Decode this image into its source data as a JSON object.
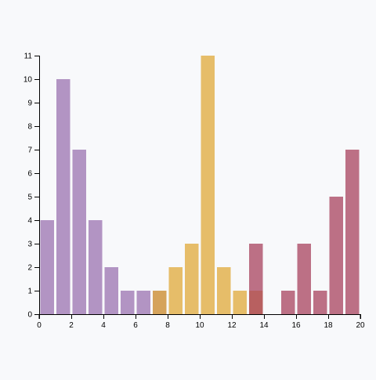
{
  "chart_data": {
    "type": "bar",
    "title": "",
    "xlabel": "",
    "ylabel": "",
    "xlim": [
      0,
      20
    ],
    "ylim": [
      0,
      11
    ],
    "grid": false,
    "legend": "none",
    "x_ticks": [
      0,
      2,
      4,
      6,
      8,
      10,
      12,
      14,
      16,
      18,
      20
    ],
    "y_ticks": [
      0,
      1,
      2,
      3,
      4,
      5,
      6,
      7,
      8,
      9,
      10,
      11
    ],
    "bin_width": 1,
    "series": [
      {
        "color": "#9b72b0",
        "bins": [
          {
            "x0": 0,
            "x1": 1,
            "value": 4
          },
          {
            "x0": 1,
            "x1": 2,
            "value": 10
          },
          {
            "x0": 2,
            "x1": 3,
            "value": 7
          },
          {
            "x0": 3,
            "x1": 4,
            "value": 4
          },
          {
            "x0": 4,
            "x1": 5,
            "value": 2
          },
          {
            "x0": 5,
            "x1": 6,
            "value": 1
          },
          {
            "x0": 6,
            "x1": 7,
            "value": 1
          },
          {
            "x0": 7,
            "x1": 8,
            "value": 1
          }
        ]
      },
      {
        "color": "#e0a838",
        "bins": [
          {
            "x0": 7,
            "x1": 8,
            "value": 1
          },
          {
            "x0": 8,
            "x1": 9,
            "value": 2
          },
          {
            "x0": 9,
            "x1": 10,
            "value": 3
          },
          {
            "x0": 10,
            "x1": 11,
            "value": 11
          },
          {
            "x0": 11,
            "x1": 12,
            "value": 2
          },
          {
            "x0": 12,
            "x1": 13,
            "value": 1
          },
          {
            "x0": 13,
            "x1": 14,
            "value": 1
          }
        ]
      },
      {
        "color": "#a8415e",
        "bins": [
          {
            "x0": 13,
            "x1": 14,
            "value": 3
          },
          {
            "x0": 15,
            "x1": 16,
            "value": 1
          },
          {
            "x0": 16,
            "x1": 17,
            "value": 3
          },
          {
            "x0": 17,
            "x1": 18,
            "value": 1
          },
          {
            "x0": 18,
            "x1": 19,
            "value": 5
          },
          {
            "x0": 19,
            "x1": 20,
            "value": 7
          }
        ]
      }
    ]
  }
}
